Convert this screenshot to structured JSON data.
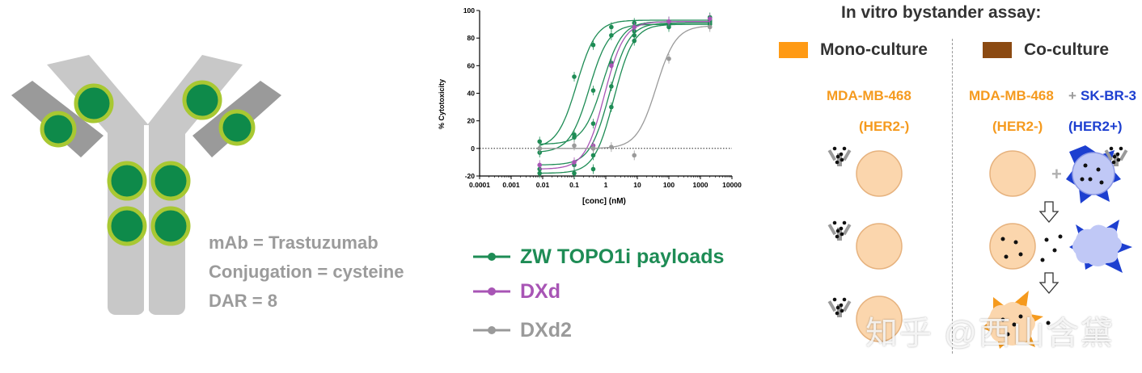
{
  "antibody": {
    "mab_line": "mAb = Trastuzumab",
    "conjugation_line": "Conjugation = cysteine",
    "dar_line": "DAR = 8",
    "colors": {
      "heavy_chain": "#c8c8c8",
      "light_chain": "#9a9a9a",
      "payload_fill": "#0e8a4a",
      "payload_ring": "#a8c832"
    }
  },
  "chart_data": {
    "type": "line",
    "title": "",
    "xlabel": "[conc] (nM)",
    "ylabel": "% Cytotoxicity",
    "x_scale": "log",
    "xlim": [
      0.0001,
      10000
    ],
    "ylim": [
      -20,
      100
    ],
    "x_ticks": [
      "0.0001",
      "0.001",
      "0.01",
      "0.1",
      "1",
      "10",
      "100",
      "1000",
      "10000"
    ],
    "y_ticks": [
      "-20",
      "0",
      "20",
      "40",
      "60",
      "80",
      "100"
    ],
    "reference_line": 0,
    "series": [
      {
        "name": "ZW TOPO1i payloads",
        "color": "#1e8c55",
        "bottom": 0,
        "top": 93,
        "ec50": 0.12,
        "x": [
          0.008,
          0.1,
          0.4,
          1.5,
          8,
          100,
          2000
        ],
        "y": [
          0,
          52,
          75,
          88,
          91,
          92,
          95
        ]
      },
      {
        "name": "ZW TOPO1i payloads",
        "color": "#1e8c55",
        "bottom": -3,
        "top": 90,
        "ec50": 0.3,
        "x": [
          0.008,
          0.1,
          0.4,
          1.5,
          8,
          100,
          2000
        ],
        "y": [
          -3,
          10,
          42,
          82,
          88,
          90,
          91
        ]
      },
      {
        "name": "ZW TOPO1i payloads",
        "color": "#1e8c55",
        "bottom": 3,
        "top": 92,
        "ec50": 0.8,
        "x": [
          0.008,
          0.1,
          0.4,
          1.5,
          8,
          100,
          2000
        ],
        "y": [
          5,
          8,
          18,
          62,
          85,
          90,
          92
        ]
      },
      {
        "name": "ZW TOPO1i payloads",
        "color": "#1e8c55",
        "bottom": -12,
        "top": 91,
        "ec50": 1.3,
        "x": [
          0.008,
          0.1,
          0.4,
          1.5,
          8,
          100,
          2000
        ],
        "y": [
          -15,
          -12,
          -5,
          45,
          82,
          90,
          93
        ]
      },
      {
        "name": "ZW TOPO1i payloads",
        "color": "#1e8c55",
        "bottom": -18,
        "top": 90,
        "ec50": 1.8,
        "x": [
          0.008,
          0.1,
          0.4,
          1.5,
          8,
          100,
          2000
        ],
        "y": [
          -18,
          -18,
          -15,
          30,
          78,
          88,
          90
        ]
      },
      {
        "name": "DXd",
        "color": "#a855b5",
        "bottom": -15,
        "top": 92,
        "ec50": 0.9,
        "x": [
          0.008,
          0.1,
          0.4,
          1.5,
          8,
          100,
          2000
        ],
        "y": [
          -12,
          -10,
          2,
          60,
          88,
          92,
          94
        ]
      },
      {
        "name": "DXd2",
        "color": "#9a9a9a",
        "bottom": 0,
        "top": 89,
        "ec50": 40,
        "x": [
          0.008,
          0.1,
          0.4,
          1.5,
          8,
          100,
          2000
        ],
        "y": [
          0,
          2,
          0,
          1,
          -5,
          65,
          88
        ]
      }
    ]
  },
  "legend": {
    "items": [
      {
        "label": "ZW TOPO1i payloads",
        "color": "#1e8c55"
      },
      {
        "label": "DXd",
        "color": "#a855b5"
      },
      {
        "label": "DXd2",
        "color": "#9a9a9a"
      }
    ]
  },
  "assay": {
    "title": "In vitro bystander assay:",
    "mono_label": "Mono-culture",
    "co_label": "Co-culture",
    "mono_color": "#ff9a14",
    "co_color": "#8b4a12",
    "her2_neg_line": "MDA-MB-468",
    "her2_neg_tag": "(HER2-)",
    "plus_sign": "+",
    "her2_pos_line": "SK-BR-3",
    "her2_pos_tag": "(HER2+)",
    "neg_color": "#f59a1e",
    "pos_color": "#1d3fd0"
  },
  "watermark": "知乎 @西山含黛"
}
